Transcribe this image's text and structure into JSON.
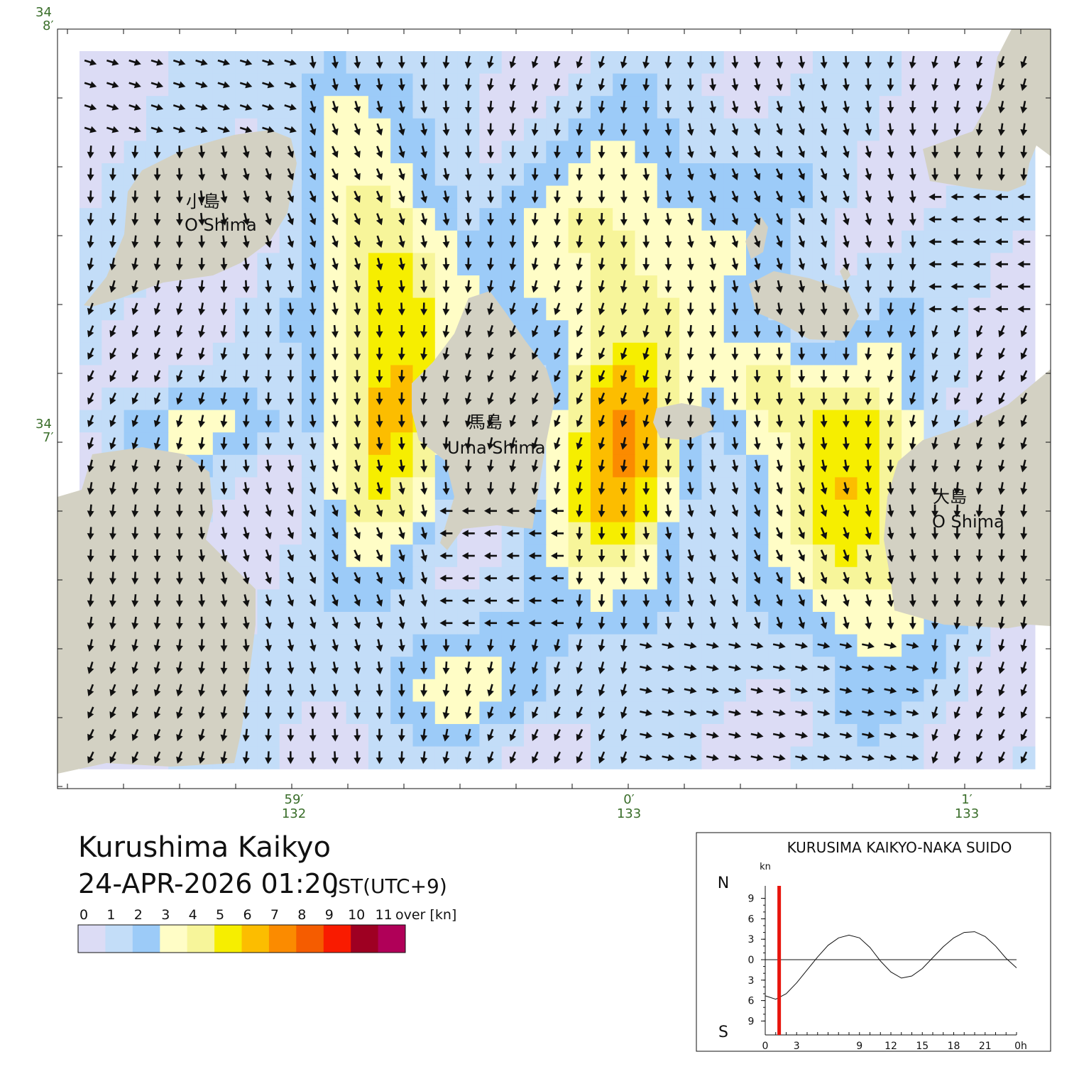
{
  "map": {
    "title": "Kurushima Kaikyo",
    "datetime": "24-APR-2026 01:20",
    "timezone": "JST(UTC+9)",
    "lat_labels": [
      {
        "deg": "34",
        "min": "8′",
        "lat": 34.1333
      },
      {
        "deg": "34",
        "min": "7′",
        "lat": 34.1167
      }
    ],
    "lon_labels": [
      {
        "min": "59′",
        "deg": "132",
        "lon": 132.9833
      },
      {
        "min": "0′",
        "deg": "133",
        "lon": 133.0
      },
      {
        "min": "1′",
        "deg": "133",
        "lon": 133.0167
      }
    ],
    "islands": [
      {
        "jp": "小島",
        "en": "O Shima"
      },
      {
        "jp": "馬島",
        "en": "Uma Shima"
      },
      {
        "jp": "大島",
        "en": "O Shima"
      }
    ],
    "colors": {
      "land": "#d3d1c3",
      "arrow": "#111111",
      "tick_label": "#3a6e2a"
    }
  },
  "legend": {
    "labels": [
      "0",
      "1",
      "2",
      "3",
      "4",
      "5",
      "6",
      "7",
      "8",
      "9",
      "10",
      "11",
      "over [kn]"
    ],
    "colors": [
      "#dcdcf5",
      "#c3ddf8",
      "#9ccbf8",
      "#fffdc6",
      "#f7f59a",
      "#f6ee00",
      "#fcbd00",
      "#fb8b00",
      "#f55c00",
      "#f91b00",
      "#9e0022",
      "#b00058"
    ]
  },
  "chart_data": {
    "type": "line",
    "title": "KURUSIMA KAIKYO-NAKA SUIDO",
    "unit": "kn",
    "north_label": "N",
    "south_label": "S",
    "xlim": [
      0,
      24
    ],
    "ylim": [
      -10,
      10
    ],
    "x_ticks": [
      "0",
      "3",
      "9",
      "12",
      "15",
      "18",
      "21",
      "0h"
    ],
    "y_ticks": [
      "9",
      "6",
      "3",
      "0",
      "3",
      "6",
      "9"
    ],
    "current_time_h": 1.33,
    "current_marker_color": "#e8140c",
    "series": [
      {
        "x": [
          0,
          1,
          2,
          3,
          4,
          5,
          6,
          7,
          8,
          9,
          10,
          11,
          12,
          13,
          14,
          15,
          16,
          17,
          18,
          19,
          20,
          21,
          22,
          23,
          24
        ],
        "y": [
          -5.3,
          -5.8,
          -5.0,
          -3.4,
          -1.5,
          0.4,
          2.1,
          3.2,
          3.6,
          3.2,
          1.8,
          -0.2,
          -1.8,
          -2.7,
          -2.4,
          -1.3,
          0.3,
          1.9,
          3.2,
          4.0,
          4.1,
          3.4,
          2.0,
          0.2,
          -1.2
        ]
      }
    ]
  }
}
